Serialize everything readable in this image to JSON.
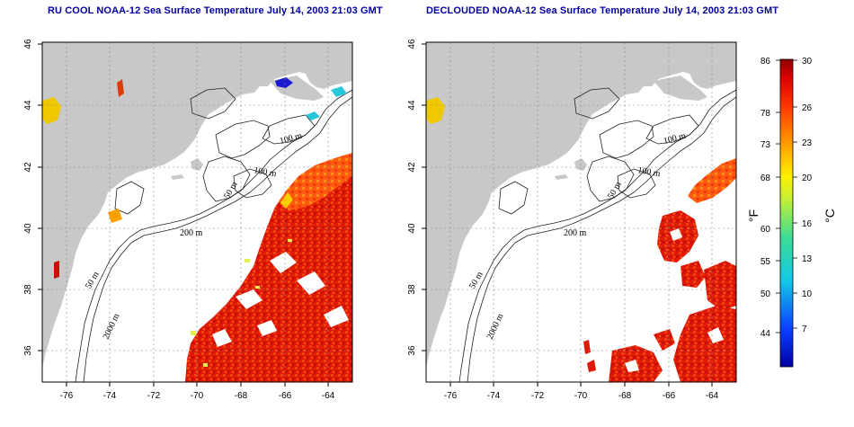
{
  "panels": [
    {
      "title": "RU COOL NOAA-12 Sea Surface Temperature July 14, 2003 21:03 GMT",
      "x_ticks": [
        "-76",
        "-74",
        "-72",
        "-70",
        "-68",
        "-66",
        "-64"
      ],
      "y_ticks": [
        "36",
        "38",
        "40",
        "42",
        "44",
        "46"
      ],
      "contour_labels": [
        "100 m",
        "100 m",
        "50 m",
        "200 m",
        "50 m",
        "2000 m"
      ]
    },
    {
      "title": "DECLOUDED NOAA-12 Sea Surface Temperature July 14, 2003 21:03 GMT",
      "x_ticks": [
        "-76",
        "-74",
        "-72",
        "-70",
        "-68",
        "-66",
        "-64"
      ],
      "y_ticks": [
        "36",
        "38",
        "40",
        "42",
        "44",
        "46"
      ],
      "contour_labels": [
        "100 m",
        "100 m",
        "50 m",
        "200 m",
        "50 m",
        "2000 m"
      ]
    }
  ],
  "colorbar": {
    "fahrenheit_ticks": [
      "86",
      "78",
      "73",
      "68",
      "60",
      "55",
      "50",
      "44"
    ],
    "celsius_ticks": [
      "30",
      "26",
      "23",
      "20",
      "16",
      "13",
      "10",
      "7"
    ],
    "fahrenheit_unit": "°F",
    "celsius_unit": "°C"
  },
  "colors": {
    "land": "#c8c8c8",
    "title": "#0000a0",
    "warm": "#dd1a0a",
    "cool": "#1a1ad0"
  }
}
